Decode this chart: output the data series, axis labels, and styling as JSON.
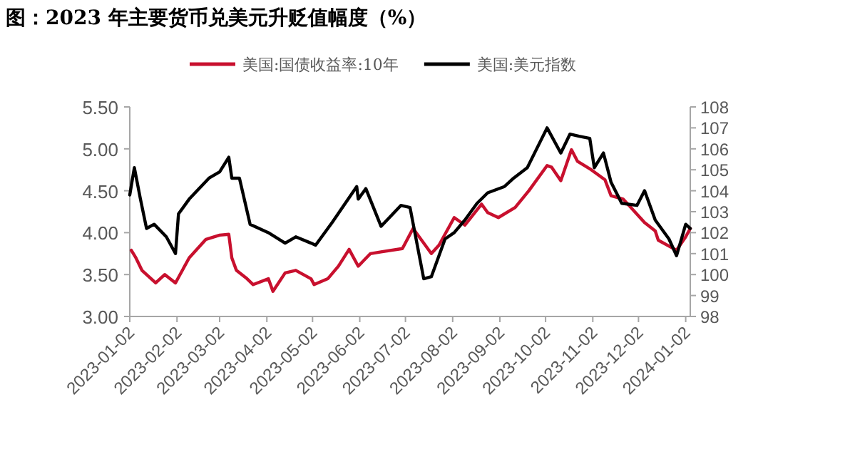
{
  "chart_data": {
    "type": "line",
    "title": "图：2023 年主要货币兑美元升贬值幅度（%）",
    "xlim": [
      "2023-01-02",
      "2024-01-05"
    ],
    "xticks": [
      "2023-01-02",
      "2023-02-02",
      "2023-03-02",
      "2023-04-02",
      "2023-05-02",
      "2023-06-02",
      "2023-07-02",
      "2023-08-02",
      "2023-09-02",
      "2023-10-02",
      "2023-11-02",
      "2023-12-02",
      "2024-01-02"
    ],
    "ylim": [
      3.0,
      5.5
    ],
    "yticks": [
      {
        "value": 3.0,
        "label": "3.00"
      },
      {
        "value": 3.5,
        "label": "3.50"
      },
      {
        "value": 4.0,
        "label": "4.00"
      },
      {
        "value": 4.5,
        "label": "4.50"
      },
      {
        "value": 5.0,
        "label": "5.00"
      },
      {
        "value": 5.5,
        "label": "5.50"
      }
    ],
    "y2lim": [
      98,
      108
    ],
    "y2ticks": [
      98,
      99,
      100,
      101,
      102,
      103,
      104,
      105,
      106,
      107,
      108
    ],
    "legend": "top",
    "grid": false,
    "marker": "none",
    "line_style": "solid",
    "series": [
      {
        "name": "美国:国债收益率:10年",
        "color": "#c8102e",
        "x": [
          "2023-01-03",
          "2023-01-06",
          "2023-01-10",
          "2023-01-19",
          "2023-01-25",
          "2023-02-01",
          "2023-02-10",
          "2023-02-21",
          "2023-03-02",
          "2023-03-08",
          "2023-03-10",
          "2023-03-13",
          "2023-03-20",
          "2023-03-24",
          "2023-04-03",
          "2023-04-06",
          "2023-04-14",
          "2023-04-21",
          "2023-05-01",
          "2023-05-03",
          "2023-05-12",
          "2023-05-19",
          "2023-05-26",
          "2023-06-01",
          "2023-06-09",
          "2023-06-16",
          "2023-06-30",
          "2023-07-07",
          "2023-07-19",
          "2023-07-24",
          "2023-08-03",
          "2023-08-10",
          "2023-08-21",
          "2023-08-25",
          "2023-09-01",
          "2023-09-12",
          "2023-09-21",
          "2023-10-03",
          "2023-10-06",
          "2023-10-12",
          "2023-10-19",
          "2023-10-23",
          "2023-11-01",
          "2023-11-10",
          "2023-11-14",
          "2023-11-22",
          "2023-12-01",
          "2023-12-06",
          "2023-12-13",
          "2023-12-15",
          "2023-12-27",
          "2024-01-02",
          "2024-01-05"
        ],
        "values": [
          3.79,
          3.7,
          3.55,
          3.4,
          3.5,
          3.4,
          3.7,
          3.92,
          3.97,
          3.98,
          3.7,
          3.55,
          3.45,
          3.38,
          3.45,
          3.3,
          3.52,
          3.55,
          3.45,
          3.38,
          3.45,
          3.6,
          3.8,
          3.6,
          3.75,
          3.77,
          3.81,
          4.05,
          3.75,
          3.85,
          4.18,
          4.09,
          4.34,
          4.24,
          4.18,
          4.3,
          4.5,
          4.8,
          4.78,
          4.62,
          4.99,
          4.85,
          4.75,
          4.63,
          4.44,
          4.4,
          4.22,
          4.12,
          4.02,
          3.91,
          3.79,
          3.95,
          4.05
        ]
      },
      {
        "name": "美国:美元指数",
        "color": "#000000",
        "axis": "y2",
        "x": [
          "2023-01-02",
          "2023-01-05",
          "2023-01-09",
          "2023-01-13",
          "2023-01-18",
          "2023-01-26",
          "2023-02-01",
          "2023-02-03",
          "2023-02-10",
          "2023-02-23",
          "2023-03-02",
          "2023-03-08",
          "2023-03-10",
          "2023-03-15",
          "2023-03-22",
          "2023-04-03",
          "2023-04-14",
          "2023-04-21",
          "2023-05-01",
          "2023-05-04",
          "2023-05-15",
          "2023-05-31",
          "2023-06-01",
          "2023-06-06",
          "2023-06-16",
          "2023-06-29",
          "2023-07-05",
          "2023-07-14",
          "2023-07-19",
          "2023-07-28",
          "2023-08-03",
          "2023-08-10",
          "2023-08-18",
          "2023-08-25",
          "2023-09-05",
          "2023-09-11",
          "2023-09-20",
          "2023-10-03",
          "2023-10-12",
          "2023-10-18",
          "2023-10-24",
          "2023-10-31",
          "2023-11-03",
          "2023-11-09",
          "2023-11-14",
          "2023-11-21",
          "2023-12-01",
          "2023-12-06",
          "2023-12-13",
          "2023-12-22",
          "2023-12-27",
          "2024-01-02",
          "2024-01-05"
        ],
        "values": [
          103.8,
          105.1,
          103.6,
          102.2,
          102.4,
          101.8,
          101.0,
          102.9,
          103.6,
          104.6,
          104.9,
          105.6,
          104.6,
          104.6,
          102.4,
          102.0,
          101.5,
          101.8,
          101.5,
          101.4,
          102.5,
          104.2,
          103.6,
          104.1,
          102.3,
          103.3,
          103.2,
          99.8,
          99.9,
          101.7,
          102.0,
          102.6,
          103.4,
          103.9,
          104.2,
          104.6,
          105.1,
          107.0,
          105.8,
          106.7,
          106.6,
          106.5,
          105.1,
          105.8,
          104.4,
          103.4,
          103.3,
          104.0,
          102.6,
          101.7,
          100.9,
          102.4,
          102.2
        ]
      }
    ]
  }
}
